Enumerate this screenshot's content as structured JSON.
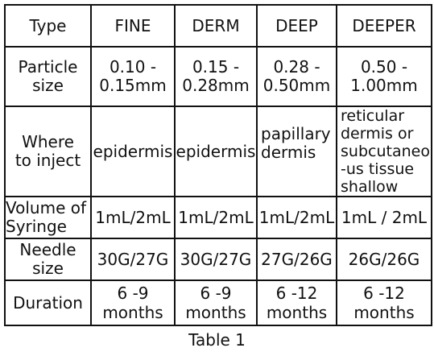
{
  "headers": [
    "Type",
    "FINE",
    "DERM",
    "DEEP",
    "DEEPER"
  ],
  "rows": [
    {
      "label": "Particle\nsize",
      "cells": [
        "0.10 -\n0.15mm",
        "0.15 -\n0.28mm",
        "0.28 -\n0.50mm",
        "0.50 -\n1.00mm"
      ]
    },
    {
      "label": "Where\nto inject",
      "cells": [
        "epidermis",
        "epidermis",
        "papillary\ndermis",
        "reticular\ndermis or\nsubcutaneo\n-us tissue\nshallow"
      ]
    },
    {
      "label": "Volume of\nSyringe",
      "cells": [
        "1mL/2mL",
        "1mL/2mL",
        "1mL/2mL",
        "1mL / 2mL"
      ]
    },
    {
      "label": "Needle\nsize",
      "cells": [
        "30G/27G",
        "30G/27G",
        "27G/26G",
        "26G/26G"
      ]
    },
    {
      "label": "Duration",
      "cells": [
        "6 -9\nmonths",
        "6 -9\nmonths",
        "6 -12\nmonths",
        "6 -12\nmonths"
      ]
    }
  ],
  "caption": "Table 1"
}
